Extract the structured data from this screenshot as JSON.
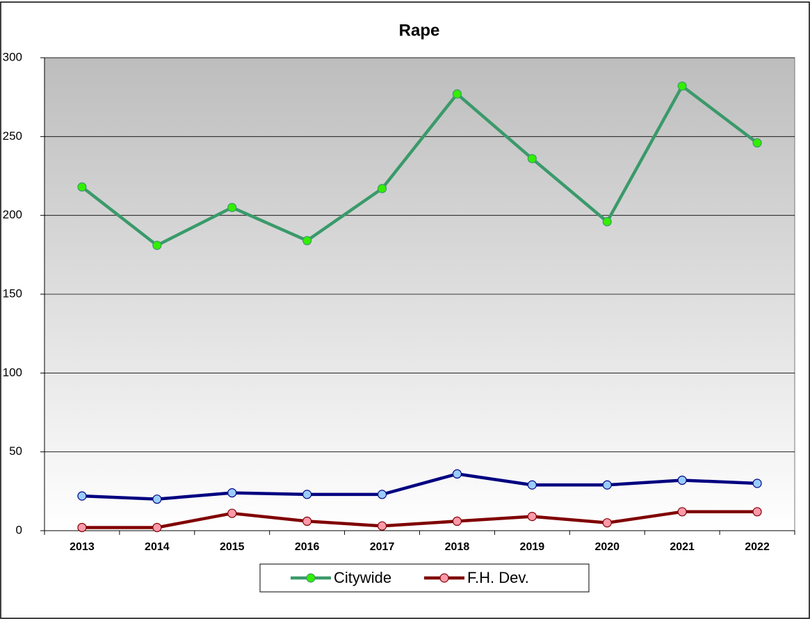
{
  "chart_data": {
    "type": "line",
    "title": "Rape",
    "categories": [
      "2013",
      "2014",
      "2015",
      "2016",
      "2017",
      "2018",
      "2019",
      "2020",
      "2021",
      "2022"
    ],
    "series": [
      {
        "name": "Citywide",
        "color": "#3a9a6a",
        "marker_color": "#33ee00",
        "values": [
          218,
          181,
          205,
          184,
          217,
          277,
          236,
          196,
          282,
          246
        ]
      },
      {
        "color": "#000080",
        "marker_color": "#99ccff",
        "values": [
          22,
          20,
          24,
          23,
          23,
          36,
          29,
          29,
          32,
          30
        ]
      },
      {
        "name": "F.H. Dev.",
        "color": "#800000",
        "marker_color": "#ff99aa",
        "values": [
          2,
          2,
          11,
          6,
          3,
          6,
          9,
          5,
          12,
          12
        ]
      }
    ],
    "ylim": [
      0,
      300
    ],
    "yticks": [
      0,
      50,
      100,
      150,
      200,
      250,
      300
    ],
    "grid": true
  }
}
